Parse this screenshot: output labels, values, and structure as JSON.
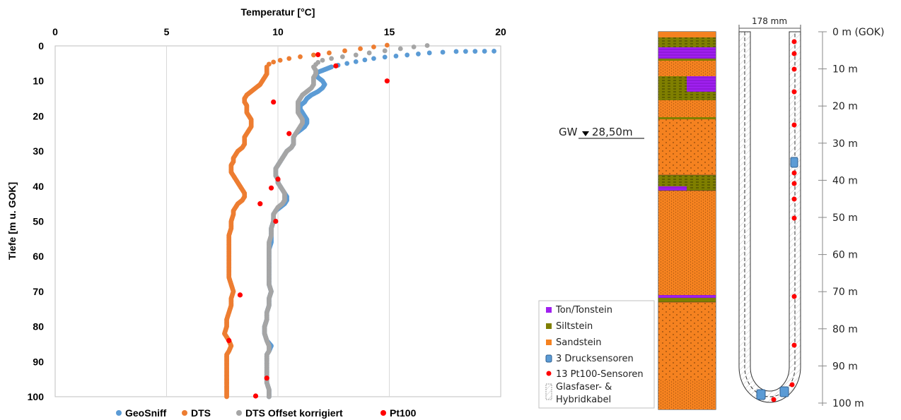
{
  "chart_data": {
    "type": "scatter",
    "title": "Temperatur [°C]",
    "xlabel": "Temperatur [°C]",
    "ylabel": "Tiefe [m u. GOK]",
    "xlim": [
      0,
      20
    ],
    "ylim": [
      0,
      100
    ],
    "x_axis_position": "top",
    "y_inverted": true,
    "x_ticks": [
      "0",
      "5",
      "10",
      "15",
      "20"
    ],
    "y_ticks": [
      "0",
      "10",
      "20",
      "30",
      "40",
      "50",
      "60",
      "70",
      "80",
      "90",
      "100"
    ],
    "grid": "vertical",
    "legend_position": "bottom",
    "series": [
      {
        "name": "GeoSniff",
        "color": "#5b9bd5",
        "marker_size": 3.4,
        "points": [
          [
            19.7,
            1.5
          ],
          [
            18.0,
            1.6
          ],
          [
            17.4,
            1.8
          ],
          [
            16.8,
            2.0
          ],
          [
            16.3,
            2.3
          ],
          [
            15.8,
            2.6
          ],
          [
            15.3,
            2.9
          ],
          [
            14.8,
            3.2
          ],
          [
            14.3,
            3.6
          ],
          [
            13.9,
            4.0
          ],
          [
            13.5,
            4.5
          ],
          [
            13.1,
            5.0
          ],
          [
            12.7,
            5.5
          ],
          [
            12.4,
            6.0
          ],
          [
            12.2,
            6.5
          ],
          [
            12.0,
            7.0
          ],
          [
            11.8,
            7.5
          ],
          [
            11.7,
            8.0
          ],
          [
            11.8,
            9.0
          ],
          [
            12.0,
            10.0
          ],
          [
            12.1,
            11.0
          ],
          [
            12.0,
            12.0
          ],
          [
            11.8,
            13.0
          ],
          [
            11.5,
            14.0
          ],
          [
            11.3,
            15.0
          ],
          [
            11.2,
            16.0
          ],
          [
            11.0,
            17.0
          ],
          [
            11.0,
            18.0
          ],
          [
            11.1,
            19.0
          ],
          [
            11.2,
            20.0
          ],
          [
            11.3,
            21.0
          ],
          [
            11.3,
            22.0
          ],
          [
            11.2,
            23.0
          ],
          [
            11.0,
            24.0
          ],
          [
            10.8,
            25.0
          ],
          [
            10.7,
            26.0
          ],
          [
            10.7,
            27.0
          ],
          [
            10.7,
            28.0
          ],
          [
            10.6,
            29.0
          ],
          [
            10.4,
            30.0
          ],
          [
            10.3,
            31.0
          ],
          [
            10.2,
            32.0
          ],
          [
            10.1,
            33.0
          ],
          [
            10.0,
            34.0
          ],
          [
            9.9,
            35.0
          ],
          [
            9.9,
            36.0
          ],
          [
            9.9,
            37.0
          ],
          [
            10.0,
            38.0
          ],
          [
            10.0,
            39.0
          ],
          [
            10.1,
            40.0
          ],
          [
            10.2,
            41.0
          ],
          [
            10.3,
            42.0
          ],
          [
            10.4,
            43.0
          ],
          [
            10.4,
            44.0
          ],
          [
            10.3,
            45.0
          ],
          [
            10.1,
            46.0
          ],
          [
            9.9,
            47.0
          ],
          [
            9.8,
            48.0
          ],
          [
            9.8,
            49.0
          ],
          [
            9.8,
            50.0
          ],
          [
            9.7,
            52.0
          ],
          [
            9.7,
            54.0
          ],
          [
            9.7,
            56.0
          ],
          [
            9.6,
            58.0
          ],
          [
            9.6,
            60.0
          ],
          [
            9.6,
            62.0
          ],
          [
            9.6,
            64.0
          ],
          [
            9.6,
            66.0
          ],
          [
            9.6,
            68.0
          ],
          [
            9.7,
            70.0
          ],
          [
            9.6,
            72.0
          ],
          [
            9.6,
            74.0
          ],
          [
            9.5,
            76.0
          ],
          [
            9.5,
            78.0
          ],
          [
            9.4,
            80.0
          ],
          [
            9.4,
            82.0
          ],
          [
            9.5,
            84.0
          ],
          [
            9.7,
            85.5
          ],
          [
            9.6,
            87.0
          ],
          [
            9.5,
            88.0
          ],
          [
            9.5,
            90.0
          ],
          [
            9.5,
            92.0
          ],
          [
            9.5,
            94.0
          ],
          [
            9.5,
            96.0
          ],
          [
            9.6,
            98.0
          ],
          [
            9.6,
            100.0
          ]
        ]
      },
      {
        "name": "DTS",
        "color": "#ed7d31",
        "marker_size": 3.4,
        "points": [
          [
            14.9,
            -0.2
          ],
          [
            14.3,
            0.3
          ],
          [
            13.7,
            0.8
          ],
          [
            13.0,
            1.4
          ],
          [
            12.3,
            2.0
          ],
          [
            11.6,
            2.6
          ],
          [
            11.0,
            3.1
          ],
          [
            10.5,
            3.6
          ],
          [
            10.1,
            4.1
          ],
          [
            9.8,
            4.6
          ],
          [
            9.6,
            5.2
          ],
          [
            9.5,
            6.0
          ],
          [
            9.5,
            7.0
          ],
          [
            9.5,
            8.0
          ],
          [
            9.4,
            9.0
          ],
          [
            9.3,
            10.0
          ],
          [
            9.2,
            11.0
          ],
          [
            9.0,
            12.0
          ],
          [
            8.8,
            13.0
          ],
          [
            8.6,
            14.0
          ],
          [
            8.5,
            15.0
          ],
          [
            8.5,
            16.0
          ],
          [
            8.6,
            17.0
          ],
          [
            8.6,
            18.0
          ],
          [
            8.6,
            19.0
          ],
          [
            8.7,
            20.0
          ],
          [
            8.8,
            21.0
          ],
          [
            8.8,
            22.0
          ],
          [
            8.8,
            23.0
          ],
          [
            8.7,
            24.0
          ],
          [
            8.6,
            25.0
          ],
          [
            8.5,
            26.0
          ],
          [
            8.5,
            27.0
          ],
          [
            8.5,
            28.0
          ],
          [
            8.4,
            29.0
          ],
          [
            8.2,
            30.0
          ],
          [
            8.1,
            31.0
          ],
          [
            8.0,
            32.0
          ],
          [
            8.0,
            33.0
          ],
          [
            7.9,
            34.0
          ],
          [
            7.9,
            35.0
          ],
          [
            7.9,
            36.0
          ],
          [
            8.0,
            37.0
          ],
          [
            8.1,
            38.0
          ],
          [
            8.2,
            39.0
          ],
          [
            8.3,
            40.0
          ],
          [
            8.4,
            41.0
          ],
          [
            8.5,
            42.0
          ],
          [
            8.5,
            43.0
          ],
          [
            8.4,
            44.0
          ],
          [
            8.2,
            45.0
          ],
          [
            8.1,
            46.0
          ],
          [
            8.0,
            47.0
          ],
          [
            8.0,
            48.0
          ],
          [
            7.9,
            50.0
          ],
          [
            7.9,
            52.0
          ],
          [
            7.8,
            54.0
          ],
          [
            7.8,
            56.0
          ],
          [
            7.8,
            58.0
          ],
          [
            7.8,
            60.0
          ],
          [
            7.8,
            62.0
          ],
          [
            7.8,
            64.0
          ],
          [
            7.8,
            66.0
          ],
          [
            7.9,
            68.0
          ],
          [
            8.0,
            70.0
          ],
          [
            7.9,
            72.0
          ],
          [
            7.9,
            74.0
          ],
          [
            7.8,
            76.0
          ],
          [
            7.7,
            78.0
          ],
          [
            7.7,
            80.0
          ],
          [
            7.6,
            82.0
          ],
          [
            7.8,
            84.0
          ],
          [
            7.9,
            85.5
          ],
          [
            7.8,
            87.0
          ],
          [
            7.7,
            88.0
          ],
          [
            7.7,
            90.0
          ],
          [
            7.7,
            92.0
          ],
          [
            7.7,
            94.0
          ],
          [
            7.7,
            96.0
          ],
          [
            7.7,
            98.0
          ],
          [
            7.7,
            100.0
          ]
        ]
      },
      {
        "name": "DTS Offset korrigiert",
        "color": "#a5a5a5",
        "marker_size": 3.4,
        "points": [
          [
            16.7,
            -0.1
          ],
          [
            16.1,
            0.3
          ],
          [
            15.5,
            0.8
          ],
          [
            14.8,
            1.4
          ],
          [
            14.1,
            2.0
          ],
          [
            13.5,
            2.6
          ],
          [
            12.9,
            3.1
          ],
          [
            12.4,
            3.6
          ],
          [
            12.0,
            4.1
          ],
          [
            11.8,
            4.7
          ],
          [
            11.7,
            5.3
          ],
          [
            11.6,
            6.0
          ],
          [
            11.7,
            7.0
          ],
          [
            11.7,
            8.0
          ],
          [
            11.6,
            9.0
          ],
          [
            11.6,
            10.0
          ],
          [
            11.6,
            11.0
          ],
          [
            11.5,
            12.0
          ],
          [
            11.3,
            13.0
          ],
          [
            11.1,
            14.0
          ],
          [
            11.0,
            15.0
          ],
          [
            10.9,
            16.0
          ],
          [
            10.9,
            17.0
          ],
          [
            10.9,
            18.0
          ],
          [
            10.9,
            19.0
          ],
          [
            11.0,
            20.0
          ],
          [
            11.1,
            21.0
          ],
          [
            11.1,
            22.0
          ],
          [
            11.0,
            23.0
          ],
          [
            10.9,
            24.0
          ],
          [
            10.8,
            25.0
          ],
          [
            10.7,
            26.0
          ],
          [
            10.7,
            27.0
          ],
          [
            10.7,
            28.0
          ],
          [
            10.6,
            29.0
          ],
          [
            10.4,
            30.0
          ],
          [
            10.3,
            31.0
          ],
          [
            10.2,
            32.0
          ],
          [
            10.1,
            33.0
          ],
          [
            10.0,
            34.0
          ],
          [
            9.9,
            35.0
          ],
          [
            9.9,
            36.0
          ],
          [
            9.9,
            37.0
          ],
          [
            10.0,
            38.0
          ],
          [
            10.0,
            39.0
          ],
          [
            10.1,
            40.0
          ],
          [
            10.2,
            41.0
          ],
          [
            10.3,
            42.0
          ],
          [
            10.3,
            43.0
          ],
          [
            10.3,
            44.0
          ],
          [
            10.2,
            45.0
          ],
          [
            10.0,
            46.0
          ],
          [
            9.9,
            47.0
          ],
          [
            9.8,
            48.0
          ],
          [
            9.8,
            50.0
          ],
          [
            9.7,
            52.0
          ],
          [
            9.7,
            54.0
          ],
          [
            9.6,
            56.0
          ],
          [
            9.6,
            58.0
          ],
          [
            9.6,
            60.0
          ],
          [
            9.6,
            62.0
          ],
          [
            9.6,
            64.0
          ],
          [
            9.6,
            66.0
          ],
          [
            9.6,
            68.0
          ],
          [
            9.7,
            70.0
          ],
          [
            9.6,
            72.0
          ],
          [
            9.6,
            74.0
          ],
          [
            9.5,
            76.0
          ],
          [
            9.5,
            78.0
          ],
          [
            9.4,
            80.0
          ],
          [
            9.4,
            82.0
          ],
          [
            9.5,
            84.0
          ],
          [
            9.6,
            85.5
          ],
          [
            9.6,
            87.0
          ],
          [
            9.5,
            88.0
          ],
          [
            9.5,
            90.0
          ],
          [
            9.5,
            92.0
          ],
          [
            9.5,
            94.0
          ],
          [
            9.5,
            96.0
          ],
          [
            9.6,
            98.0
          ],
          [
            9.6,
            100.0
          ]
        ]
      },
      {
        "name": "Pt100",
        "color": "#ff0000",
        "marker_size": 3.6,
        "points": [
          [
            11.8,
            2.5
          ],
          [
            12.6,
            5.7
          ],
          [
            14.9,
            10.0
          ],
          [
            9.8,
            16.0
          ],
          [
            10.5,
            25.0
          ],
          [
            10.0,
            38.0
          ],
          [
            9.7,
            40.5
          ],
          [
            9.2,
            45.0
          ],
          [
            9.9,
            50.0
          ],
          [
            8.3,
            71.0
          ],
          [
            7.8,
            84.0
          ],
          [
            9.5,
            94.7
          ],
          [
            9.0,
            99.8
          ]
        ]
      }
    ]
  },
  "profile": {
    "width_label": "178 mm",
    "groundwater_label": "GW",
    "groundwater_value": "28,50m",
    "depth_labels": [
      "0 m (GOK)",
      "10 m",
      "20 m",
      "30 m",
      "40 m",
      "50 m",
      "60 m",
      "70 m",
      "80 m",
      "90 m",
      "100 m"
    ],
    "legend": [
      {
        "label": "Ton/Tonstein",
        "color": "#a020f0"
      },
      {
        "label": "Siltstein",
        "color": "#7f7f00"
      },
      {
        "label": "Sandstein",
        "color": "#f58220"
      },
      {
        "label": "3 Drucksensoren",
        "color": "#5b9bd5"
      },
      {
        "label": "13 Pt100-Sensoren",
        "color": "#ff0000"
      },
      {
        "label": "Glasfaser- &",
        "color": "#ffffff"
      },
      {
        "label": "Hybridkabel",
        "color": "#ffffff"
      }
    ]
  }
}
